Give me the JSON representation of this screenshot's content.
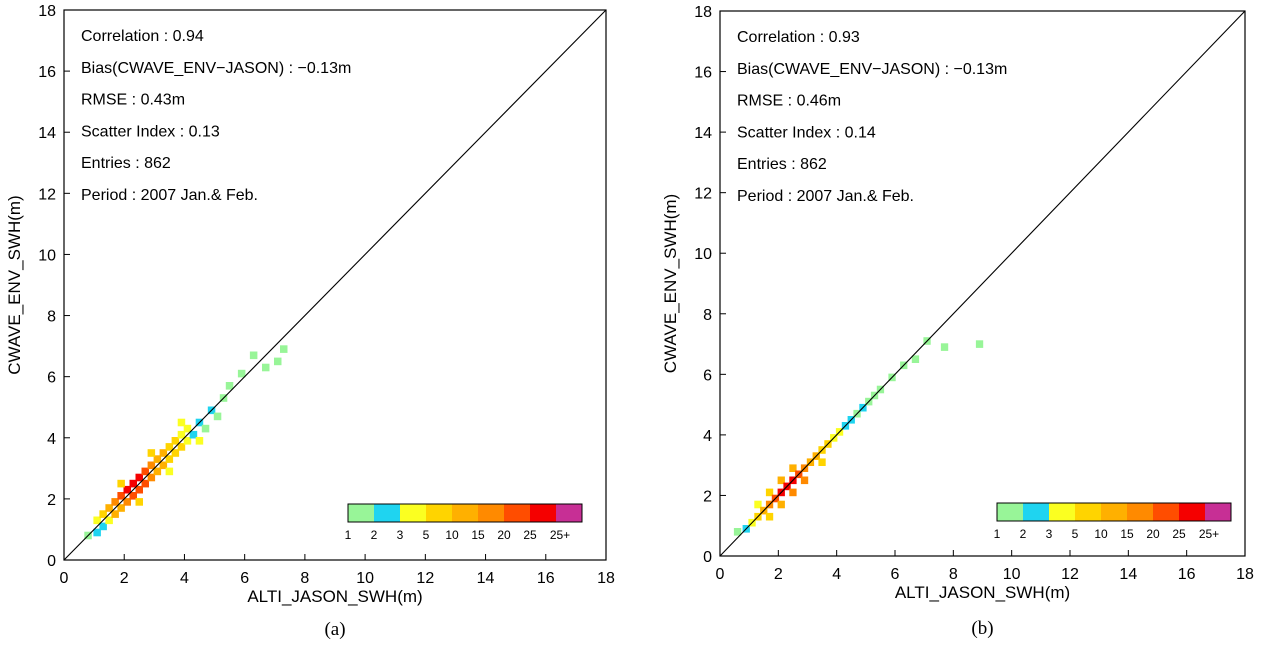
{
  "chart_data": [
    {
      "type": "heatmap",
      "caption": "(a)",
      "xlabel": "ALTI_JASON_SWH(m)",
      "ylabel": "CWAVE_ENV_SWH(m)",
      "xlim": [
        0,
        18
      ],
      "ylim": [
        0,
        18
      ],
      "x_ticks": [
        "0",
        "2",
        "4",
        "6",
        "8",
        "10",
        "12",
        "14",
        "16",
        "18"
      ],
      "y_ticks": [
        "0",
        "2",
        "4",
        "6",
        "8",
        "10",
        "12",
        "14",
        "16",
        "18"
      ],
      "bin_size": 0.25,
      "reference_line": "y = x",
      "stats": [
        "Correlation : 0.94",
        "Bias(CWAVE_ENV−JASON) : −0.13m",
        "RMSE : 0.43m",
        "Scatter Index : 0.13",
        "Entries : 862",
        "Period : 2007 Jan.& Feb."
      ],
      "points": [
        {
          "x": 0.8,
          "y": 0.8,
          "c": 1
        },
        {
          "x": 1.1,
          "y": 0.9,
          "c": 2
        },
        {
          "x": 1.1,
          "y": 1.3,
          "c": 3
        },
        {
          "x": 1.3,
          "y": 1.1,
          "c": 2
        },
        {
          "x": 1.3,
          "y": 1.5,
          "c": 5
        },
        {
          "x": 1.5,
          "y": 1.3,
          "c": 3
        },
        {
          "x": 1.5,
          "y": 1.7,
          "c": 10
        },
        {
          "x": 1.7,
          "y": 1.5,
          "c": 10
        },
        {
          "x": 1.7,
          "y": 1.9,
          "c": 15
        },
        {
          "x": 1.9,
          "y": 1.7,
          "c": 10
        },
        {
          "x": 1.9,
          "y": 2.1,
          "c": 20
        },
        {
          "x": 2.1,
          "y": 1.9,
          "c": 15
        },
        {
          "x": 2.1,
          "y": 2.3,
          "c": 25
        },
        {
          "x": 2.3,
          "y": 2.1,
          "c": 20
        },
        {
          "x": 2.3,
          "y": 2.5,
          "c": 30
        },
        {
          "x": 2.5,
          "y": 2.3,
          "c": 20
        },
        {
          "x": 2.5,
          "y": 2.7,
          "c": 25
        },
        {
          "x": 2.7,
          "y": 2.5,
          "c": 20
        },
        {
          "x": 2.7,
          "y": 2.9,
          "c": 20
        },
        {
          "x": 2.9,
          "y": 2.7,
          "c": 15
        },
        {
          "x": 2.9,
          "y": 3.1,
          "c": 15
        },
        {
          "x": 3.1,
          "y": 2.9,
          "c": 10
        },
        {
          "x": 3.1,
          "y": 3.3,
          "c": 10
        },
        {
          "x": 3.3,
          "y": 3.1,
          "c": 10
        },
        {
          "x": 3.3,
          "y": 3.5,
          "c": 10
        },
        {
          "x": 3.5,
          "y": 3.3,
          "c": 5
        },
        {
          "x": 3.5,
          "y": 3.7,
          "c": 5
        },
        {
          "x": 3.7,
          "y": 3.5,
          "c": 5
        },
        {
          "x": 3.7,
          "y": 3.9,
          "c": 5
        },
        {
          "x": 3.9,
          "y": 3.7,
          "c": 5
        },
        {
          "x": 3.9,
          "y": 4.1,
          "c": 3
        },
        {
          "x": 4.1,
          "y": 3.9,
          "c": 3
        },
        {
          "x": 4.1,
          "y": 4.3,
          "c": 3
        },
        {
          "x": 4.3,
          "y": 4.1,
          "c": 2
        },
        {
          "x": 4.5,
          "y": 4.5,
          "c": 2
        },
        {
          "x": 4.7,
          "y": 4.3,
          "c": 1
        },
        {
          "x": 4.9,
          "y": 4.9,
          "c": 2
        },
        {
          "x": 5.1,
          "y": 4.7,
          "c": 1
        },
        {
          "x": 5.3,
          "y": 5.3,
          "c": 1
        },
        {
          "x": 5.5,
          "y": 5.7,
          "c": 1
        },
        {
          "x": 5.9,
          "y": 6.1,
          "c": 1
        },
        {
          "x": 6.3,
          "y": 6.7,
          "c": 1
        },
        {
          "x": 6.7,
          "y": 6.3,
          "c": 1
        },
        {
          "x": 7.1,
          "y": 6.5,
          "c": 1
        },
        {
          "x": 7.3,
          "y": 6.9,
          "c": 1
        },
        {
          "x": 1.9,
          "y": 2.5,
          "c": 5
        },
        {
          "x": 2.5,
          "y": 1.9,
          "c": 5
        },
        {
          "x": 2.9,
          "y": 3.5,
          "c": 5
        },
        {
          "x": 3.5,
          "y": 2.9,
          "c": 3
        },
        {
          "x": 3.9,
          "y": 4.5,
          "c": 3
        },
        {
          "x": 4.5,
          "y": 3.9,
          "c": 3
        }
      ]
    },
    {
      "type": "heatmap",
      "caption": "(b)",
      "xlabel": "ALTI_JASON_SWH(m)",
      "ylabel": "CWAVE_ENV_SWH(m)",
      "xlim": [
        0,
        18
      ],
      "ylim": [
        0,
        18
      ],
      "x_ticks": [
        "0",
        "2",
        "4",
        "6",
        "8",
        "10",
        "12",
        "14",
        "16",
        "18"
      ],
      "y_ticks": [
        "0",
        "2",
        "4",
        "6",
        "8",
        "10",
        "12",
        "14",
        "16",
        "18"
      ],
      "bin_size": 0.25,
      "reference_line": "y = x",
      "stats": [
        "Correlation : 0.93",
        "Bias(CWAVE_ENV−JASON) : −0.13m",
        "RMSE : 0.46m",
        "Scatter Index : 0.14",
        "Entries : 862",
        "Period : 2007 Jan.& Feb."
      ],
      "points": [
        {
          "x": 0.6,
          "y": 0.8,
          "c": 1
        },
        {
          "x": 0.9,
          "y": 0.9,
          "c": 2
        },
        {
          "x": 1.1,
          "y": 1.1,
          "c": 3
        },
        {
          "x": 1.3,
          "y": 1.3,
          "c": 5
        },
        {
          "x": 1.3,
          "y": 1.7,
          "c": 3
        },
        {
          "x": 1.5,
          "y": 1.5,
          "c": 10
        },
        {
          "x": 1.7,
          "y": 1.3,
          "c": 5
        },
        {
          "x": 1.7,
          "y": 1.7,
          "c": 15
        },
        {
          "x": 1.7,
          "y": 2.1,
          "c": 5
        },
        {
          "x": 1.9,
          "y": 1.9,
          "c": 20
        },
        {
          "x": 2.1,
          "y": 1.7,
          "c": 10
        },
        {
          "x": 2.1,
          "y": 2.1,
          "c": 25
        },
        {
          "x": 2.1,
          "y": 2.5,
          "c": 10
        },
        {
          "x": 2.3,
          "y": 2.3,
          "c": 25
        },
        {
          "x": 2.5,
          "y": 2.1,
          "c": 15
        },
        {
          "x": 2.5,
          "y": 2.5,
          "c": 25
        },
        {
          "x": 2.5,
          "y": 2.9,
          "c": 10
        },
        {
          "x": 2.7,
          "y": 2.7,
          "c": 20
        },
        {
          "x": 2.9,
          "y": 2.5,
          "c": 15
        },
        {
          "x": 2.9,
          "y": 2.9,
          "c": 15
        },
        {
          "x": 3.1,
          "y": 3.1,
          "c": 10
        },
        {
          "x": 3.3,
          "y": 3.3,
          "c": 10
        },
        {
          "x": 3.5,
          "y": 3.1,
          "c": 5
        },
        {
          "x": 3.5,
          "y": 3.5,
          "c": 5
        },
        {
          "x": 3.7,
          "y": 3.7,
          "c": 5
        },
        {
          "x": 3.9,
          "y": 3.9,
          "c": 3
        },
        {
          "x": 4.1,
          "y": 4.1,
          "c": 3
        },
        {
          "x": 4.3,
          "y": 4.3,
          "c": 2
        },
        {
          "x": 4.5,
          "y": 4.5,
          "c": 2
        },
        {
          "x": 4.7,
          "y": 4.7,
          "c": 1
        },
        {
          "x": 4.9,
          "y": 4.9,
          "c": 2
        },
        {
          "x": 5.1,
          "y": 5.1,
          "c": 1
        },
        {
          "x": 5.3,
          "y": 5.3,
          "c": 1
        },
        {
          "x": 5.5,
          "y": 5.5,
          "c": 1
        },
        {
          "x": 5.9,
          "y": 5.9,
          "c": 1
        },
        {
          "x": 6.3,
          "y": 6.3,
          "c": 1
        },
        {
          "x": 6.7,
          "y": 6.5,
          "c": 1
        },
        {
          "x": 7.1,
          "y": 7.1,
          "c": 1
        },
        {
          "x": 7.7,
          "y": 6.9,
          "c": 1
        },
        {
          "x": 8.9,
          "y": 7.0,
          "c": 1
        }
      ]
    }
  ],
  "legend": {
    "labels": [
      "1",
      "2",
      "3",
      "5",
      "10",
      "15",
      "20",
      "25",
      "25+"
    ],
    "colors": [
      "#98f598",
      "#1fd4f0",
      "#fbff21",
      "#ffd400",
      "#ffb000",
      "#ff8a00",
      "#ff4d00",
      "#f50000",
      "#c72f95"
    ]
  }
}
